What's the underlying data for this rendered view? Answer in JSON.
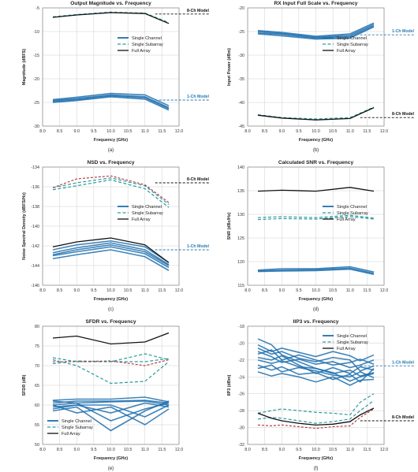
{
  "colors": {
    "single_channel": "#1d6fae",
    "single_subarray": "#2a9a9e",
    "full_array": "#111111",
    "red_curve": "#b0303a",
    "model_blue": "#2a7ab0",
    "model_black": "#111111"
  },
  "chart_data": [
    {
      "id": "a",
      "type": "line",
      "label": "(a)",
      "title": "Output Magnitude vs. Frequency",
      "xlabel": "Frequency (GHz)",
      "ylabel": "Magnitude (dBFS)",
      "xlim": [
        8,
        12
      ],
      "ylim": [
        -30,
        -5
      ],
      "xticks": [
        8.0,
        8.5,
        9.0,
        9.5,
        10.0,
        10.5,
        11.0,
        11.5,
        12.0
      ],
      "yticks": [
        -30,
        -25,
        -20,
        -15,
        -10,
        -5
      ],
      "x": [
        8.3,
        9.0,
        10.0,
        11.0,
        11.7
      ],
      "legend": {
        "position": "right-middle",
        "entries": [
          "Single Channel",
          "Single Subarray",
          "Full Array"
        ]
      },
      "series": [
        {
          "role": "single_channel",
          "bands": [
            [
              -25.0,
              -24.6,
              -23.8,
              -24.3,
              -26.6
            ],
            [
              -24.6,
              -24.2,
              -23.4,
              -23.8,
              -26.1
            ],
            [
              -24.4,
              -23.9,
              -23.1,
              -23.4,
              -25.7
            ],
            [
              -24.8,
              -24.4,
              -23.6,
              -24.0,
              -26.3
            ]
          ]
        },
        {
          "role": "single_subarray",
          "values": [
            -6.9,
            -6.4,
            -5.9,
            -6.1,
            -8.1
          ]
        },
        {
          "role": "full_array",
          "values": [
            -7.0,
            -6.5,
            -6.0,
            -6.2,
            -8.3
          ]
        }
      ],
      "models": [
        {
          "label": "8-Ch Model",
          "value": -6.3,
          "color": "black"
        },
        {
          "label": "1-Ch Model",
          "value": -24.5,
          "color": "blue"
        }
      ]
    },
    {
      "id": "b",
      "type": "line",
      "label": "(b)",
      "title": "RX Input Full Scale vs. Frequency",
      "xlabel": "Frequency (GHz)",
      "ylabel": "Input Power (dBm)",
      "xlim": [
        8,
        12
      ],
      "ylim": [
        -45,
        -20
      ],
      "xticks": [
        8.0,
        8.5,
        9.0,
        9.5,
        10.0,
        10.5,
        11.0,
        11.5,
        12.0
      ],
      "yticks": [
        -45,
        -40,
        -35,
        -30,
        -25,
        -20
      ],
      "x": [
        8.3,
        9.0,
        10.0,
        11.0,
        11.7
      ],
      "legend": {
        "position": "right-middle",
        "entries": [
          "Single Channel",
          "Single Subarray",
          "Full Array"
        ]
      },
      "series": [
        {
          "role": "single_channel",
          "bands": [
            [
              -25.5,
              -25.9,
              -26.6,
              -26.4,
              -24.0
            ],
            [
              -25.0,
              -25.4,
              -26.2,
              -25.8,
              -23.5
            ],
            [
              -24.8,
              -25.2,
              -26.0,
              -25.5,
              -23.2
            ],
            [
              -25.3,
              -25.6,
              -26.4,
              -26.1,
              -23.8
            ]
          ]
        },
        {
          "role": "single_subarray",
          "values": [
            -42.6,
            -43.2,
            -43.5,
            -43.2,
            -41.0
          ]
        },
        {
          "role": "full_array",
          "values": [
            -42.7,
            -43.3,
            -43.7,
            -43.4,
            -41.1
          ]
        }
      ],
      "models": [
        {
          "label": "1-Ch Model",
          "value": -25.7,
          "color": "blue"
        },
        {
          "label": "8-Ch Model",
          "value": -43.2,
          "color": "black"
        }
      ]
    },
    {
      "id": "c",
      "type": "line",
      "label": "(c)",
      "title": "NSD vs. Frequency",
      "xlabel": "Frequency (GHz)",
      "ylabel": "Noise Spectral Density (dBFS/Hz)",
      "xlim": [
        8,
        12
      ],
      "ylim": [
        -146,
        -134
      ],
      "xticks": [
        8.0,
        8.5,
        9.0,
        9.5,
        10.0,
        10.5,
        11.0,
        11.5,
        12.0
      ],
      "yticks": [
        -146,
        -144,
        -142,
        -140,
        -138,
        -136,
        -134
      ],
      "x": [
        8.3,
        9.0,
        10.0,
        11.0,
        11.7
      ],
      "legend": {
        "position": "right-middle",
        "entries": [
          "Single Channel",
          "Single Subarray",
          "Full Array"
        ]
      },
      "series": [
        {
          "role": "single_channel",
          "bands": [
            [
              -143.0,
              -142.6,
              -142.1,
              -142.8,
              -144.2
            ],
            [
              -142.7,
              -142.2,
              -141.7,
              -142.4,
              -143.9
            ],
            [
              -142.4,
              -141.9,
              -141.5,
              -142.1,
              -143.7
            ],
            [
              -143.3,
              -142.9,
              -142.4,
              -143.1,
              -144.5
            ],
            [
              -142.9,
              -142.4,
              -141.9,
              -142.6,
              -144.0
            ]
          ]
        },
        {
          "role": "single_subarray",
          "values": [
            -136.1,
            -135.6,
            -135.1,
            -135.9,
            -137.8
          ]
        },
        {
          "role": "single_subarray",
          "values": [
            -136.3,
            -135.9,
            -135.3,
            -136.2,
            -138.1
          ]
        },
        {
          "role": "red_curve",
          "values": [
            -136.1,
            -135.2,
            -134.9,
            -135.8,
            -137.6
          ]
        },
        {
          "role": "full_array",
          "values": [
            -142.1,
            -141.6,
            -141.2,
            -141.9,
            -143.7
          ]
        }
      ],
      "models": [
        {
          "label": "8-Ch Model",
          "value": -135.6,
          "color": "black"
        },
        {
          "label": "1-Ch Model",
          "value": -142.4,
          "color": "blue"
        }
      ]
    },
    {
      "id": "d",
      "type": "line",
      "label": "(d)",
      "title": "Calculated SNR vs. Frequency",
      "xlabel": "Frequency (GHz)",
      "ylabel": "SNR (dBc/Hz)",
      "xlim": [
        8,
        12
      ],
      "ylim": [
        115,
        140
      ],
      "xticks": [
        8.0,
        8.5,
        9.0,
        9.5,
        10.0,
        10.5,
        11.0,
        11.5,
        12.0
      ],
      "yticks": [
        115,
        120,
        125,
        130,
        135,
        140
      ],
      "x": [
        8.3,
        9.0,
        10.0,
        11.0,
        11.7
      ],
      "legend": {
        "position": "right-middle",
        "entries": [
          "Single Channel",
          "Single Subarray",
          "Full Array"
        ]
      },
      "series": [
        {
          "role": "single_channel",
          "bands": [
            [
              118.0,
              118.2,
              118.3,
              118.6,
              117.5
            ],
            [
              118.2,
              118.5,
              118.5,
              118.9,
              117.8
            ],
            [
              117.9,
              118.0,
              118.1,
              118.4,
              117.3
            ]
          ]
        },
        {
          "role": "single_subarray",
          "values": [
            129.3,
            129.5,
            129.3,
            129.8,
            129.2
          ]
        },
        {
          "role": "single_subarray",
          "values": [
            128.9,
            129.1,
            129.0,
            129.5,
            129.0
          ]
        },
        {
          "role": "full_array",
          "values": [
            134.9,
            135.1,
            134.9,
            135.7,
            134.9
          ]
        }
      ],
      "models": []
    },
    {
      "id": "e",
      "type": "line",
      "label": "(e)",
      "title": "SFDR vs. Frequency",
      "xlabel": "Frequency (GHz)",
      "ylabel": "SFDR (dB)",
      "xlim": [
        8,
        12
      ],
      "ylim": [
        50,
        80
      ],
      "xticks": [
        8.0,
        8.5,
        9.0,
        9.5,
        10.0,
        10.5,
        11.0,
        11.5,
        12.0
      ],
      "yticks": [
        50,
        55,
        60,
        65,
        70,
        75,
        80
      ],
      "x": [
        8.3,
        9.0,
        10.0,
        11.0,
        11.7
      ],
      "legend": {
        "position": "bottom-left",
        "entries": [
          "Single Channel",
          "Single Subarray",
          "Full Array"
        ]
      },
      "series": [
        {
          "role": "single_channel",
          "bands": [
            [
              60.5,
              61.0,
              61.0,
              61.2,
              60.5
            ],
            [
              60.0,
              60.5,
              60.8,
              61.0,
              60.0
            ],
            [
              59.5,
              60.0,
              58.0,
              60.5,
              59.5
            ],
            [
              61.0,
              60.5,
              56.0,
              59.0,
              60.5
            ],
            [
              58.5,
              59.5,
              53.5,
              58.5,
              61.0
            ],
            [
              60.0,
              58.0,
              59.5,
              55.0,
              59.0
            ],
            [
              61.2,
              61.5,
              61.5,
              62.0,
              60.8
            ],
            [
              59.0,
              60.0,
              60.0,
              57.0,
              60.0
            ]
          ]
        },
        {
          "role": "single_subarray",
          "values": [
            71.5,
            70.0,
            65.5,
            66.0,
            71.0
          ]
        },
        {
          "role": "single_subarray",
          "values": [
            72.0,
            71.0,
            71.0,
            73.0,
            71.5
          ]
        },
        {
          "role": "single_subarray",
          "values": [
            70.5,
            71.2,
            71.0,
            71.0,
            71.8
          ]
        },
        {
          "role": "red_curve",
          "values": [
            71.0,
            71.0,
            71.2,
            70.0,
            71.5
          ]
        },
        {
          "role": "full_array",
          "values": [
            77.0,
            77.5,
            75.5,
            76.0,
            78.3
          ]
        }
      ],
      "models": []
    },
    {
      "id": "f",
      "type": "line",
      "label": "(f)",
      "title": "IIP3 vs. Frequency",
      "xlabel": "Frequency (GHz)",
      "ylabel": "IIP3 (dBm)",
      "xlim": [
        8,
        12
      ],
      "ylim": [
        -32,
        -18
      ],
      "xticks": [
        8.0,
        8.5,
        9.0,
        9.5,
        10.0,
        10.5,
        11.0,
        11.5,
        12.0
      ],
      "yticks": [
        -32,
        -30,
        -28,
        -26,
        -24,
        -22,
        -20,
        -18
      ],
      "x": [
        8.3,
        8.7,
        9.0,
        9.5,
        10.0,
        10.5,
        11.0,
        11.3,
        11.7
      ],
      "legend": {
        "position": "top-right",
        "entries": [
          "Single Channel",
          "Single Subarray",
          "Full Array"
        ]
      },
      "series": [
        {
          "role": "single_channel",
          "bands": [
            [
              -22.0,
              -22.4,
              -22.1,
              -22.8,
              -23.0,
              -23.6,
              -23.2,
              -23.9,
              -23.5
            ],
            [
              -21.0,
              -21.6,
              -22.3,
              -21.9,
              -22.5,
              -22.2,
              -22.9,
              -22.6,
              -22.0
            ],
            [
              -20.6,
              -21.3,
              -21.0,
              -21.8,
              -22.2,
              -21.7,
              -22.0,
              -23.3,
              -22.7
            ],
            [
              -23.0,
              -22.6,
              -23.4,
              -22.9,
              -23.3,
              -23.8,
              -24.0,
              -23.4,
              -24.1
            ],
            [
              -21.7,
              -22.0,
              -21.5,
              -22.6,
              -23.6,
              -22.9,
              -23.6,
              -22.8,
              -23.2
            ],
            [
              -19.5,
              -20.2,
              -21.4,
              -22.2,
              -23.0,
              -23.5,
              -24.5,
              -24.0,
              -23.6
            ],
            [
              -22.6,
              -23.2,
              -22.8,
              -23.7,
              -23.5,
              -24.3,
              -23.7,
              -24.6,
              -23.0
            ],
            [
              -21.3,
              -20.8,
              -22.0,
              -21.4,
              -22.0,
              -22.6,
              -22.3,
              -21.9,
              -22.5
            ],
            [
              -23.4,
              -23.9,
              -23.6,
              -24.0,
              -24.6,
              -24.0,
              -25.0,
              -24.4,
              -24.3
            ],
            [
              -20.2,
              -21.0,
              -20.6,
              -21.1,
              -21.6,
              -21.0,
              -21.5,
              -22.1,
              -21.4
            ]
          ]
        },
        {
          "role": "single_subarray",
          "values": [
            -28.3,
            -28.0,
            -27.8,
            -28.0,
            -28.2,
            -28.3,
            -28.5,
            -27.0,
            -26.0
          ]
        },
        {
          "role": "single_subarray",
          "values": [
            -29.0,
            -28.8,
            -28.9,
            -29.2,
            -29.5,
            -29.3,
            -29.0,
            -28.0,
            -26.8
          ]
        },
        {
          "role": "red_curve",
          "values": [
            -29.7,
            -29.8,
            -29.7,
            -29.9,
            -30.1,
            -29.9,
            -29.8,
            -28.8,
            -27.8
          ]
        },
        {
          "role": "full_array",
          "values": [
            -28.3,
            -28.9,
            -29.2,
            -29.5,
            -29.7,
            -29.6,
            -29.3,
            -28.5,
            -27.7
          ]
        }
      ],
      "models": [
        {
          "label": "1-Ch Model",
          "value": -22.7,
          "color": "blue"
        },
        {
          "label": "8-Ch Model",
          "value": -29.2,
          "color": "black"
        }
      ]
    }
  ]
}
